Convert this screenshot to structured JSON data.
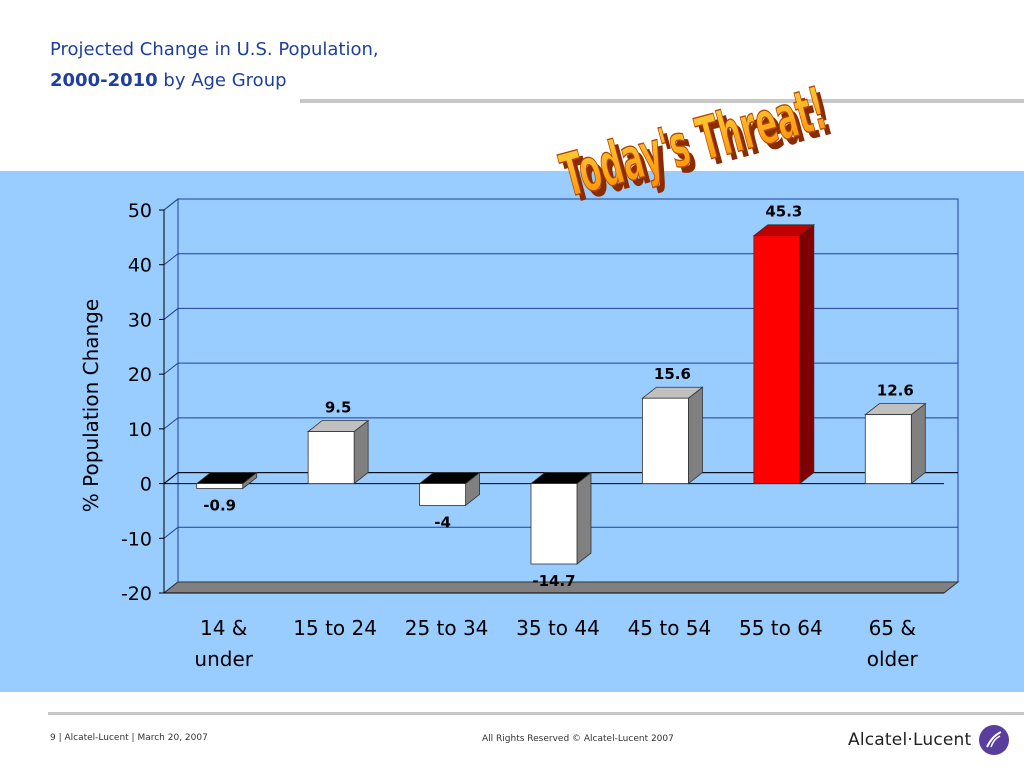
{
  "slide": {
    "title_line1": "Projected Change in U.S. Population,",
    "title_line2_bold": "2000-2010",
    "title_line2_rest": " by Age Group",
    "wordart": "Today's Threat!"
  },
  "footer": {
    "left": "9 | Alcatel-Lucent | March 20, 2007",
    "center": "All Rights Reserved © Alcatel-Lucent 2007",
    "logo_text": "Alcatel·Lucent"
  },
  "chart_data": {
    "type": "bar",
    "categories": [
      "14 & under",
      "15 to 24",
      "25 to 34",
      "35 to 44",
      "45 to 54",
      "55 to 64",
      "65 & older"
    ],
    "category_lines": [
      [
        "14 &",
        "under"
      ],
      [
        "15 to 24"
      ],
      [
        "25 to 34"
      ],
      [
        "35 to 44"
      ],
      [
        "45 to 54"
      ],
      [
        "55 to 64"
      ],
      [
        "65 &",
        "older"
      ]
    ],
    "values": [
      -0.9,
      9.5,
      -4,
      -14.7,
      15.6,
      45.3,
      12.6
    ],
    "value_labels": [
      "-0.9",
      "9.5",
      "-4",
      "-14.7",
      "15.6",
      "45.3",
      "12.6"
    ],
    "ylabel": "% Population Change",
    "ylim": [
      -20,
      50
    ],
    "yticks": [
      -20,
      -10,
      0,
      10,
      20,
      30,
      40,
      50
    ],
    "grid": true,
    "highlight_index": 5,
    "colors": {
      "bar_face": "#ffffff",
      "bar_side": "#808080",
      "bar_top": "#c0c0c0",
      "neg_top": "#000000",
      "highlight_face": "#ff0000",
      "highlight_side": "#800000",
      "highlight_top": "#c00000",
      "grid": "#1f3f9e",
      "plot_bg": "#99ccff",
      "floor": "#808080"
    }
  }
}
